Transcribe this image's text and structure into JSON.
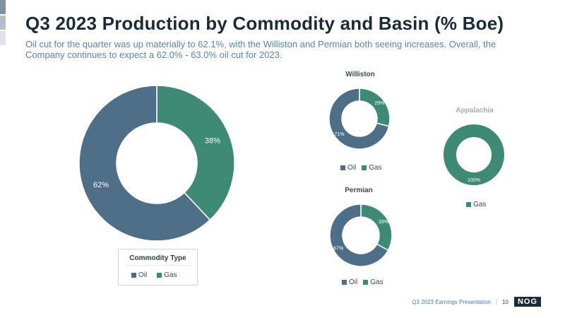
{
  "colors": {
    "oil": "#4f6e88",
    "gas": "#3f8a75",
    "title": "#1c2b3a",
    "subtitle": "#5a86a8"
  },
  "title": "Q3 2023 Production by Commodity and Basin (% Boe)",
  "subtitle": "Oil cut for the quarter was up materially to 62.1%, with the Williston and Permian both seeing increases. Overall, the Company continues to expect a 62.0% - 63.0% oil cut for 2023.",
  "legend_box": {
    "title": "Commodity Type",
    "oil": "Oil",
    "gas": "Gas"
  },
  "footer": {
    "text": "Q3 2023 Earnings Presentation",
    "separator": "|",
    "page": "10",
    "logo": "NOG"
  },
  "chart_data": [
    {
      "type": "pie",
      "title": "",
      "categories": [
        "Oil",
        "Gas"
      ],
      "values": [
        62,
        38
      ],
      "labels": [
        "62%",
        "38%"
      ]
    },
    {
      "type": "pie",
      "title": "Williston",
      "categories": [
        "Oil",
        "Gas"
      ],
      "values": [
        71,
        29
      ],
      "labels": [
        "71%",
        "29%"
      ],
      "legend": [
        "Oil",
        "Gas"
      ]
    },
    {
      "type": "pie",
      "title": "Appalachia",
      "categories": [
        "Gas"
      ],
      "values": [
        100
      ],
      "labels": [
        "100%"
      ],
      "legend": [
        "Gas"
      ]
    },
    {
      "type": "pie",
      "title": "Permian",
      "categories": [
        "Oil",
        "Gas"
      ],
      "values": [
        67,
        33
      ],
      "labels": [
        "67%",
        "33%"
      ],
      "legend": [
        "Oil",
        "Gas"
      ]
    }
  ]
}
